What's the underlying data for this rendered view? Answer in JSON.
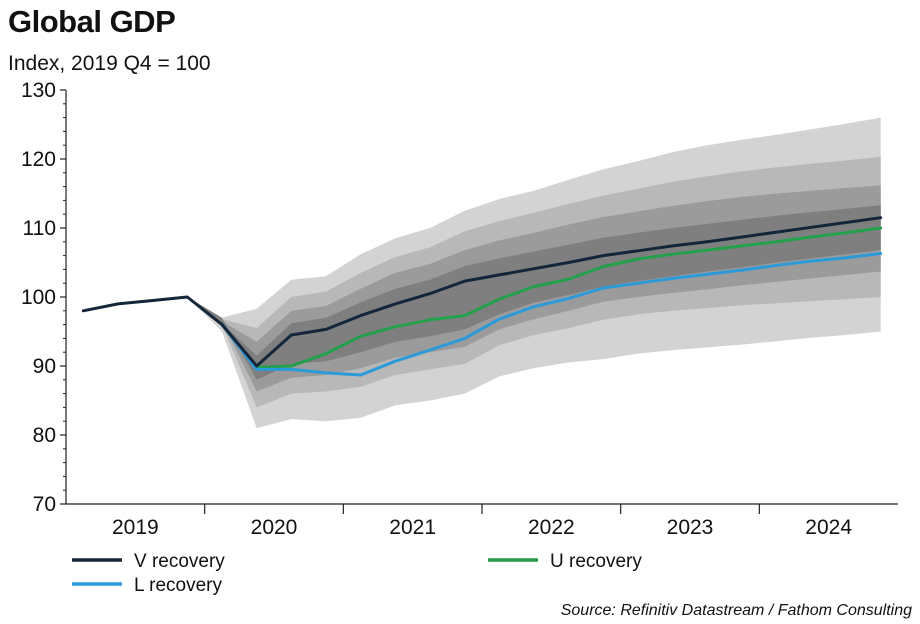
{
  "chart_data": {
    "type": "line",
    "title": "Global GDP",
    "subtitle": "Index, 2019 Q4 = 100",
    "source": "Source: Refinitiv Datastream / Fathom Consulting",
    "ylim": [
      70,
      130
    ],
    "yticks": [
      "70",
      "80",
      "90",
      "100",
      "110",
      "120",
      "130"
    ],
    "year_labels": [
      "2019",
      "2020",
      "2021",
      "2022",
      "2023",
      "2024"
    ],
    "x": [
      "2019 Q1",
      "2019 Q2",
      "2019 Q3",
      "2019 Q4",
      "2020 Q1",
      "2020 Q2",
      "2020 Q3",
      "2020 Q4",
      "2021 Q1",
      "2021 Q2",
      "2021 Q3",
      "2021 Q4",
      "2022 Q1",
      "2022 Q2",
      "2022 Q3",
      "2022 Q4",
      "2023 Q1",
      "2023 Q2",
      "2023 Q3",
      "2023 Q4",
      "2024 Q1",
      "2024 Q2",
      "2024 Q3",
      "2024 Q4"
    ],
    "series": [
      {
        "name": "V recovery",
        "color": "#14263a",
        "values": [
          98,
          99,
          99.5,
          100,
          96,
          90,
          94.5,
          95.3,
          97.3,
          99,
          100.5,
          102.3,
          103.2,
          104.1,
          105,
          106,
          106.7,
          107.4,
          108,
          108.7,
          109.4,
          110.1,
          110.8,
          111.5
        ]
      },
      {
        "name": "U recovery",
        "color": "#22a04a",
        "values": [
          null,
          null,
          null,
          null,
          null,
          89.8,
          90,
          91.8,
          94.3,
          95.7,
          96.7,
          97.3,
          99.7,
          101.5,
          102.6,
          104.4,
          105.5,
          106.2,
          106.8,
          107.4,
          108,
          108.7,
          109.3,
          110
        ]
      },
      {
        "name": "L recovery",
        "color": "#2b9ad8",
        "values": [
          null,
          null,
          null,
          null,
          null,
          89.5,
          89.5,
          89,
          88.7,
          90.7,
          92.3,
          94,
          96.8,
          98.6,
          99.8,
          101.3,
          102,
          102.7,
          103.3,
          103.9,
          104.6,
          105.2,
          105.7,
          106.3
        ]
      }
    ],
    "fan_bands": [
      {
        "color": "#d3d3d3",
        "lower": [
          null,
          null,
          null,
          null,
          95,
          81,
          82.3,
          82,
          82.5,
          84.3,
          85,
          86,
          88.5,
          89.7,
          90.5,
          91,
          91.8,
          92.3,
          92.7,
          93.1,
          93.6,
          94.1,
          94.5,
          95
        ],
        "upper": [
          null,
          null,
          null,
          null,
          97,
          98.3,
          102.5,
          103,
          106.2,
          108.5,
          110,
          112.5,
          114.2,
          115.4,
          117,
          118.5,
          119.7,
          121,
          122,
          122.8,
          123.5,
          124.3,
          125.1,
          126
        ]
      },
      {
        "color": "#b8b8b8",
        "lower": [
          null,
          null,
          null,
          null,
          96,
          84,
          86,
          86.3,
          87,
          88.7,
          89.5,
          90.3,
          93,
          94.5,
          95.5,
          96.7,
          97.5,
          98,
          98.4,
          98.8,
          99.1,
          99.4,
          99.7,
          100
        ]
      },
      {
        "color": "#9b9b9b",
        "lower": [
          null,
          null,
          null,
          null,
          96.5,
          86.3,
          88.3,
          88.7,
          89.7,
          91.2,
          92,
          92.8,
          95.3,
          96.8,
          98,
          99.3,
          100,
          100.6,
          101.1,
          101.7,
          102.2,
          102.7,
          103.2,
          103.7
        ]
      },
      {
        "color": "#7f7f7f",
        "lower": [
          null,
          null,
          null,
          null,
          97,
          88,
          90.3,
          90.7,
          92,
          93.5,
          94.3,
          95.3,
          97.5,
          99.2,
          100.3,
          101.5,
          102.3,
          103,
          103.7,
          104.3,
          105,
          105.6,
          106.2,
          106.8
        ]
      }
    ],
    "fan_uppers": [
      [
        null,
        null,
        null,
        null,
        97,
        98.3,
        102.5,
        103,
        106.2,
        108.5,
        110,
        112.5,
        114.2,
        115.4,
        117,
        118.5,
        119.7,
        121,
        122,
        122.8,
        123.5,
        124.3,
        125.1,
        126
      ],
      [
        null,
        null,
        null,
        null,
        96.8,
        95.5,
        100,
        100.8,
        103.5,
        105.8,
        107.2,
        109.5,
        111,
        112.2,
        113.5,
        114.7,
        115.7,
        116.7,
        117.5,
        118.2,
        118.8,
        119.3,
        119.8,
        120.3
      ],
      [
        null,
        null,
        null,
        null,
        96.5,
        93.5,
        98,
        98.7,
        101.2,
        103.5,
        104.8,
        106.8,
        108.2,
        109.3,
        110.5,
        111.6,
        112.4,
        113.2,
        113.9,
        114.5,
        115,
        115.4,
        115.8,
        116.2
      ],
      [
        null,
        null,
        null,
        null,
        96.2,
        91.5,
        96.2,
        97,
        99.2,
        101.2,
        102.5,
        104.5,
        105.6,
        106.6,
        107.6,
        108.6,
        109.3,
        110,
        110.6,
        111.2,
        111.8,
        112.3,
        112.8,
        113.3
      ]
    ],
    "legend": [
      {
        "label": "V recovery",
        "color": "#14263a",
        "position": "bottom-left row 1"
      },
      {
        "label": "U recovery",
        "color": "#22a04a",
        "position": "bottom-right row 1"
      },
      {
        "label": "L recovery",
        "color": "#2b9ad8",
        "position": "bottom-left row 2"
      }
    ],
    "grid": false
  }
}
